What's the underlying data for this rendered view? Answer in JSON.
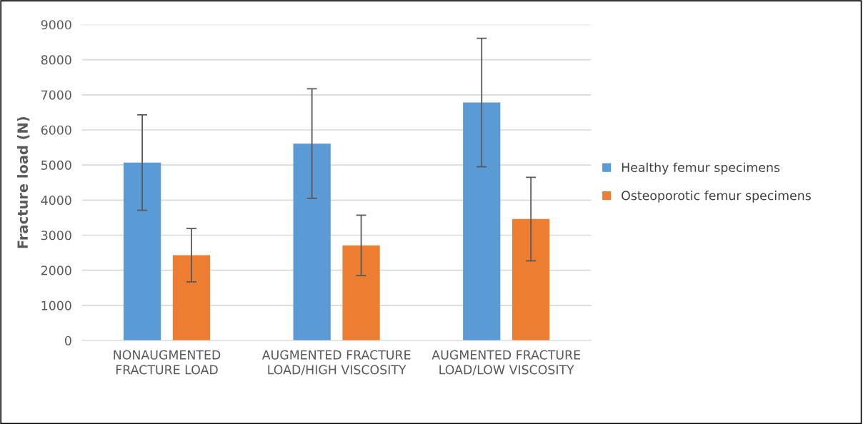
{
  "chart_data": {
    "type": "bar",
    "ylabel": "Fracture load (N)",
    "categories": [
      "NONAUGMENTED FRACTURE LOAD",
      "AUGMENTED FRACTURE LOAD/HIGH VISCOSITY",
      "AUGMENTED FRACTURE LOAD/LOW VISCOSITY"
    ],
    "series": [
      {
        "name": "Healthy femur specimens",
        "color": "#5b9bd5",
        "values": [
          5070,
          5610,
          6780
        ],
        "errors": [
          1360,
          1560,
          1830
        ]
      },
      {
        "name": "Osteoporotic femur specimens",
        "color": "#ed7d31",
        "values": [
          2430,
          2710,
          3460
        ],
        "errors": [
          760,
          860,
          1190
        ]
      }
    ],
    "ylim": [
      0,
      9000
    ],
    "yticks": [
      0,
      1000,
      2000,
      3000,
      4000,
      5000,
      6000,
      7000,
      8000,
      9000
    ],
    "grid": "y",
    "legend": "right"
  }
}
